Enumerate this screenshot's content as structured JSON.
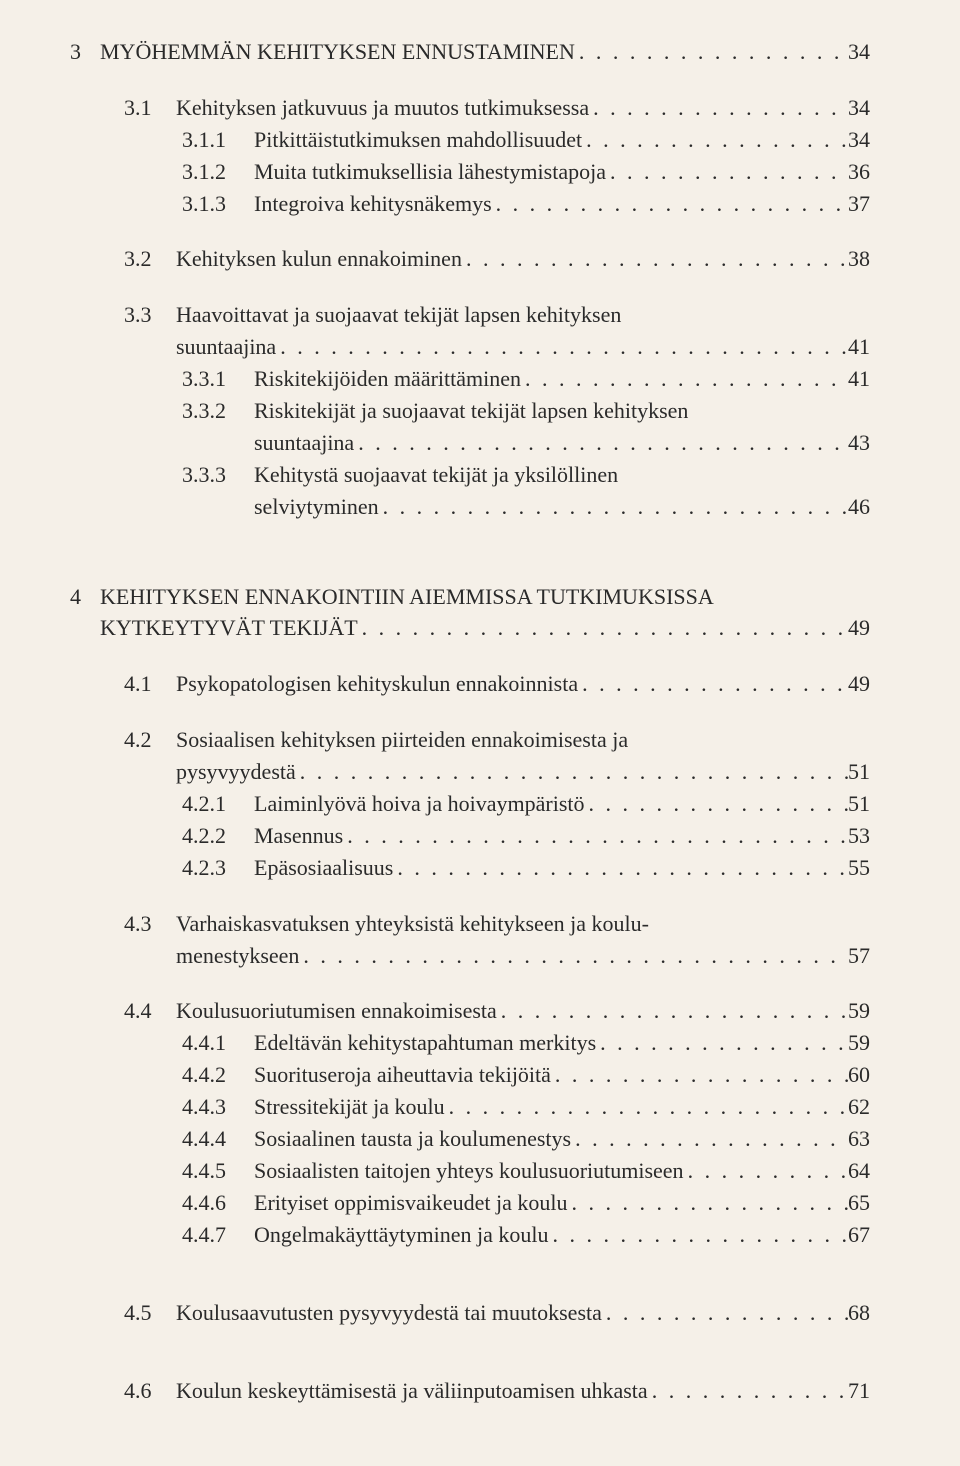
{
  "toc": {
    "ch3": {
      "num": "3",
      "title": "MYÖHEMMÄN KEHITYKSEN ENNUSTAMINEN",
      "page": "34",
      "s1": {
        "num": "3.1",
        "title": "Kehityksen jatkuvuus ja muutos tutkimuksessa",
        "page": "34",
        "s1": {
          "num": "3.1.1",
          "title": "Pitkittäistutkimuksen mahdollisuudet",
          "page": "34"
        },
        "s2": {
          "num": "3.1.2",
          "title": "Muita tutkimuksellisia lähestymistapoja",
          "page": "36"
        },
        "s3": {
          "num": "3.1.3",
          "title": "Integroiva kehitysnäkemys",
          "page": "37"
        }
      },
      "s2": {
        "num": "3.2",
        "title": "Kehityksen kulun ennakoiminen",
        "page": "38"
      },
      "s3": {
        "num": "3.3",
        "title_a": "Haavoittavat ja suojaavat tekijät lapsen kehityksen",
        "title_b": "suuntaajina",
        "page": "41",
        "s1": {
          "num": "3.3.1",
          "title": "Riskitekijöiden määrittäminen",
          "page": "41"
        },
        "s2": {
          "num": "3.3.2",
          "title_a": "Riskitekijät ja suojaavat tekijät lapsen kehityksen",
          "title_b": "suuntaajina",
          "page": "43"
        },
        "s3": {
          "num": "3.3.3",
          "title_a": "Kehitystä suojaavat tekijät ja yksilöllinen",
          "title_b": "selviytyminen",
          "page": "46"
        }
      }
    },
    "ch4": {
      "num": "4",
      "title_a": "KEHITYKSEN ENNAKOINTIIN AIEMMISSA TUTKIMUKSISSA",
      "title_b": "KYTKEYTYVÄT TEKIJÄT",
      "page": "49",
      "s1": {
        "num": "4.1",
        "title": "Psykopatologisen kehityskulun ennakoinnista",
        "page": "49"
      },
      "s2": {
        "num": "4.2",
        "title_a": "Sosiaalisen kehityksen piirteiden ennakoimisesta ja",
        "title_b": "pysyvyydestä",
        "page": "51",
        "s1": {
          "num": "4.2.1",
          "title": "Laiminlyövä hoiva ja hoivaympäristö",
          "page": "51"
        },
        "s2": {
          "num": "4.2.2",
          "title": "Masennus",
          "page": "53"
        },
        "s3": {
          "num": "4.2.3",
          "title": "Epäsosiaalisuus",
          "page": "55"
        }
      },
      "s3": {
        "num": "4.3",
        "title_a": "Varhaiskasvatuksen yhteyksistä kehitykseen ja koulu-",
        "title_b": "menestykseen",
        "page": "57"
      },
      "s4": {
        "num": "4.4",
        "title": "Koulusuoriutumisen ennakoimisesta",
        "page": "59",
        "s1": {
          "num": "4.4.1",
          "title": "Edeltävän kehitystapahtuman merkitys",
          "page": "59"
        },
        "s2": {
          "num": "4.4.2",
          "title": "Suorituseroja aiheuttavia tekijöitä",
          "page": "60"
        },
        "s3": {
          "num": "4.4.3",
          "title": "Stressitekijät ja koulu",
          "page": "62"
        },
        "s4": {
          "num": "4.4.4",
          "title": "Sosiaalinen tausta ja koulumenestys",
          "page": "63"
        },
        "s5": {
          "num": "4.4.5",
          "title": "Sosiaalisten taitojen yhteys koulusuoriutumiseen",
          "page": "64"
        },
        "s6": {
          "num": "4.4.6",
          "title": "Erityiset oppimisvaikeudet ja koulu",
          "page": "65"
        },
        "s7": {
          "num": "4.4.7",
          "title": "Ongelmakäyttäytyminen ja koulu",
          "page": "67"
        }
      },
      "s5": {
        "num": "4.5",
        "title": "Koulusaavutusten pysyvyydestä tai muutoksesta",
        "page": "68"
      },
      "s6": {
        "num": "4.6",
        "title": "Koulun keskeyttämisestä ja väliinputoamisen uhkasta",
        "page": "71"
      }
    }
  },
  "leader_dots": ". . . . . . . . . . . . . . . . . . . . . . . . . . . . . . . . . . . . . . . . . . . . . . . . . . . . . . . . . . . . . . . . . . . . . . . . . . . . . . . . . . . . . . . ."
}
